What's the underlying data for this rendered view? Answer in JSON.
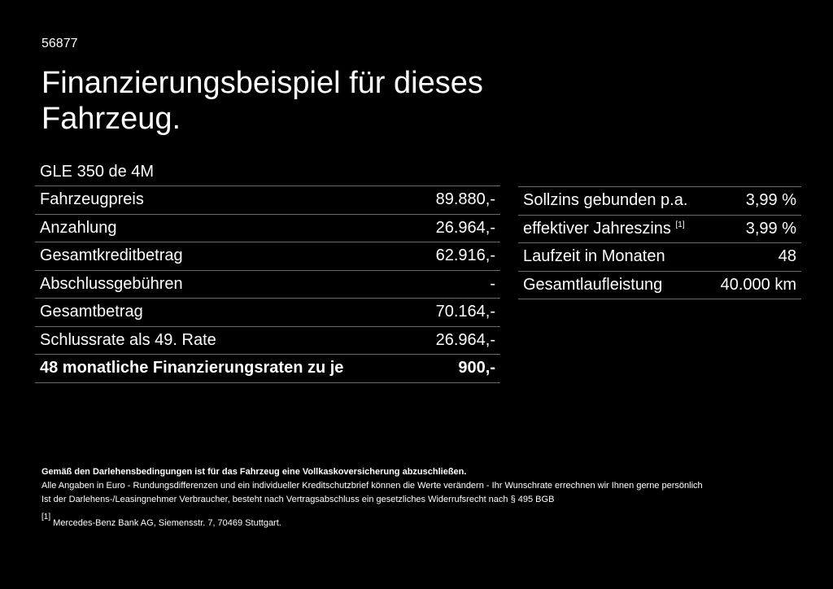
{
  "code": "56877",
  "title": "Finanzierungsbeispiel für dieses Fahrzeug.",
  "model": "GLE 350 de 4M",
  "left_rows": [
    {
      "label": "Fahrzeugpreis",
      "value": "89.880,-"
    },
    {
      "label": "Anzahlung",
      "value": "26.964,-"
    },
    {
      "label": "Gesamtkreditbetrag",
      "value": "62.916,-"
    },
    {
      "label": "Abschlussgebühren",
      "value": "-"
    },
    {
      "label": "Gesamtbetrag",
      "value": "70.164,-"
    },
    {
      "label": "Schlussrate als 49. Rate",
      "value": "26.964,-"
    },
    {
      "label": "48 monatliche Finanzierungsraten zu je",
      "value": "900,-"
    }
  ],
  "right_rows": [
    {
      "label": "Sollzins gebunden p.a.",
      "sup": "",
      "value": "3,99 %"
    },
    {
      "label": "effektiver Jahreszins",
      "sup": "[1]",
      "value": "3,99 %"
    },
    {
      "label": "Laufzeit in Monaten",
      "sup": "",
      "value": "48"
    },
    {
      "label": "Gesamtlaufleistung",
      "sup": "",
      "value": "40.000 km"
    }
  ],
  "notes": {
    "insurance": "Gemäß den Darlehensbedingungen ist für das Fahrzeug eine Vollkaskoversicherung abzuschließen.",
    "line1": "Alle Angaben in Euro - Rundungsdifferenzen und ein individueller Kreditschutzbrief können die Werte verändern - Ihr Wunschrate errechnen wir Ihnen gerne persönlich",
    "line2": "Ist der Darlehens-/Leasingnehmer Verbraucher, besteht nach Vertragsabschluss ein gesetzliches Widerrufsrecht nach § 495 BGB",
    "footnote_mark": "[1]",
    "footnote": "Mercedes-Benz Bank AG, Siemensstr. 7, 70469 Stuttgart."
  }
}
